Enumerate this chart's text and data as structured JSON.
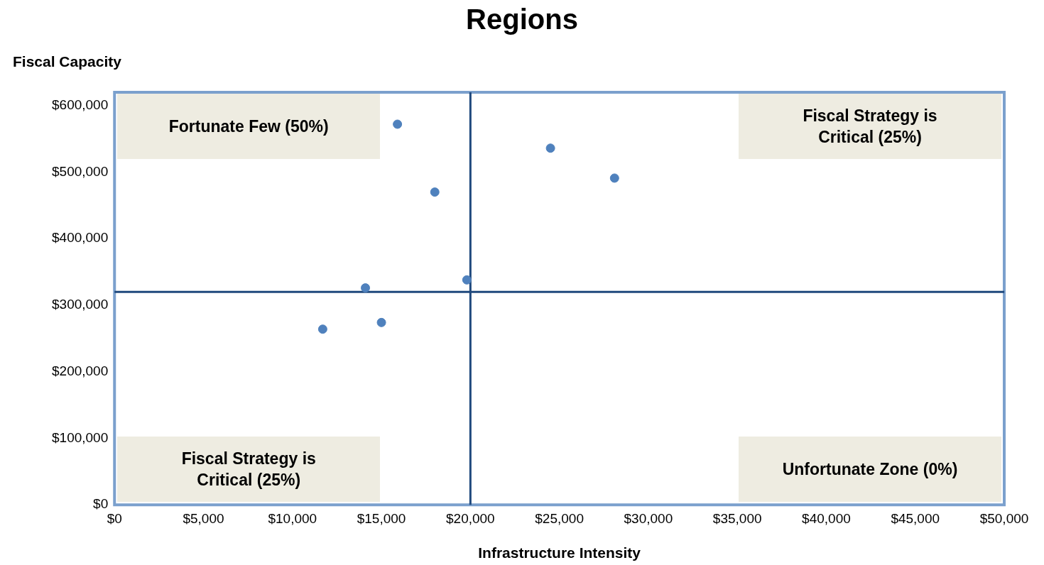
{
  "chart_data": {
    "type": "scatter",
    "title": "Regions",
    "xlabel": "Infrastructure Intensity",
    "ylabel": "Fiscal Capacity",
    "x": [
      15900,
      24500,
      28100,
      18000,
      19800,
      14100,
      15000,
      11700
    ],
    "values": [
      572000,
      536000,
      491000,
      470000,
      338000,
      326000,
      274000,
      264000
    ],
    "color": "#4f81bd",
    "marker": "circle",
    "grid": false,
    "legend": false,
    "xlim": [
      0,
      50000
    ],
    "xticks": [
      {
        "value": 0,
        "label": "$0"
      },
      {
        "value": 5000,
        "label": "$5,000"
      },
      {
        "value": 10000,
        "label": "$10,000"
      },
      {
        "value": 15000,
        "label": "$15,000"
      },
      {
        "value": 20000,
        "label": "$20,000"
      },
      {
        "value": 25000,
        "label": "$25,000"
      },
      {
        "value": 30000,
        "label": "$30,000"
      },
      {
        "value": 35000,
        "label": "$35,000"
      },
      {
        "value": 40000,
        "label": "$40,000"
      },
      {
        "value": 45000,
        "label": "$45,000"
      },
      {
        "value": 50000,
        "label": "$50,000"
      }
    ],
    "ylim": [
      0,
      620000
    ],
    "yticks": [
      {
        "value": 0,
        "label": "$0"
      },
      {
        "value": 100000,
        "label": "$100,000"
      },
      {
        "value": 200000,
        "label": "$200,000"
      },
      {
        "value": 300000,
        "label": "$300,000"
      },
      {
        "value": 400000,
        "label": "$400,000"
      },
      {
        "value": 500000,
        "label": "$500,000"
      },
      {
        "value": 600000,
        "label": "$600,000"
      }
    ],
    "ref_lines": [
      {
        "axis": "x",
        "value": 20000,
        "color": "#1f497d"
      },
      {
        "axis": "y",
        "value": 320000,
        "color": "#1f497d"
      }
    ],
    "annotations": [
      "Fortunate Few (50%)",
      "Fiscal Strategy is\nCritical (25%)",
      "Fiscal Strategy is\nCritical (25%)",
      "Unfortunate Zone (0%)"
    ]
  }
}
